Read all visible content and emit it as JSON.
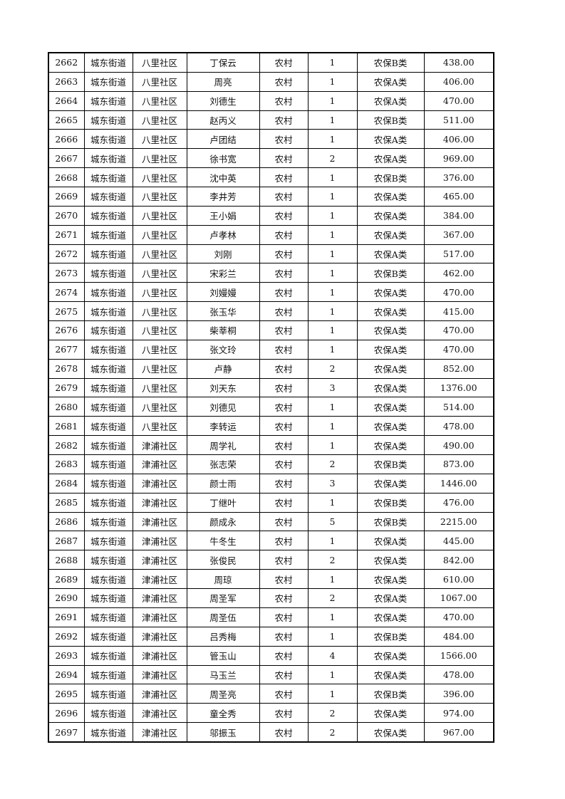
{
  "table": {
    "rows": [
      [
        "2662",
        "城东街道",
        "八里社区",
        "丁保云",
        "农村",
        "1",
        "农保B类",
        "438.00"
      ],
      [
        "2663",
        "城东街道",
        "八里社区",
        "周亮",
        "农村",
        "1",
        "农保A类",
        "406.00"
      ],
      [
        "2664",
        "城东街道",
        "八里社区",
        "刘德生",
        "农村",
        "1",
        "农保A类",
        "470.00"
      ],
      [
        "2665",
        "城东街道",
        "八里社区",
        "赵丙义",
        "农村",
        "1",
        "农保B类",
        "511.00"
      ],
      [
        "2666",
        "城东街道",
        "八里社区",
        "卢团结",
        "农村",
        "1",
        "农保A类",
        "406.00"
      ],
      [
        "2667",
        "城东街道",
        "八里社区",
        "徐书宽",
        "农村",
        "2",
        "农保A类",
        "969.00"
      ],
      [
        "2668",
        "城东街道",
        "八里社区",
        "沈中英",
        "农村",
        "1",
        "农保B类",
        "376.00"
      ],
      [
        "2669",
        "城东街道",
        "八里社区",
        "李井芳",
        "农村",
        "1",
        "农保A类",
        "465.00"
      ],
      [
        "2670",
        "城东街道",
        "八里社区",
        "王小娟",
        "农村",
        "1",
        "农保A类",
        "384.00"
      ],
      [
        "2671",
        "城东街道",
        "八里社区",
        "卢孝林",
        "农村",
        "1",
        "农保A类",
        "367.00"
      ],
      [
        "2672",
        "城东街道",
        "八里社区",
        "刘刚",
        "农村",
        "1",
        "农保A类",
        "517.00"
      ],
      [
        "2673",
        "城东街道",
        "八里社区",
        "宋彩兰",
        "农村",
        "1",
        "农保B类",
        "462.00"
      ],
      [
        "2674",
        "城东街道",
        "八里社区",
        "刘嫚嫚",
        "农村",
        "1",
        "农保A类",
        "470.00"
      ],
      [
        "2675",
        "城东街道",
        "八里社区",
        "张玉华",
        "农村",
        "1",
        "农保A类",
        "415.00"
      ],
      [
        "2676",
        "城东街道",
        "八里社区",
        "柴莘桐",
        "农村",
        "1",
        "农保A类",
        "470.00"
      ],
      [
        "2677",
        "城东街道",
        "八里社区",
        "张文玲",
        "农村",
        "1",
        "农保A类",
        "470.00"
      ],
      [
        "2678",
        "城东街道",
        "八里社区",
        "卢静",
        "农村",
        "2",
        "农保A类",
        "852.00"
      ],
      [
        "2679",
        "城东街道",
        "八里社区",
        "刘天东",
        "农村",
        "3",
        "农保A类",
        "1376.00"
      ],
      [
        "2680",
        "城东街道",
        "八里社区",
        "刘德见",
        "农村",
        "1",
        "农保A类",
        "514.00"
      ],
      [
        "2681",
        "城东街道",
        "八里社区",
        "李转运",
        "农村",
        "1",
        "农保A类",
        "478.00"
      ],
      [
        "2682",
        "城东街道",
        "津浦社区",
        "周学礼",
        "农村",
        "1",
        "农保A类",
        "490.00"
      ],
      [
        "2683",
        "城东街道",
        "津浦社区",
        "张志荣",
        "农村",
        "2",
        "农保B类",
        "873.00"
      ],
      [
        "2684",
        "城东街道",
        "津浦社区",
        "颜士雨",
        "农村",
        "3",
        "农保A类",
        "1446.00"
      ],
      [
        "2685",
        "城东街道",
        "津浦社区",
        "丁继叶",
        "农村",
        "1",
        "农保B类",
        "476.00"
      ],
      [
        "2686",
        "城东街道",
        "津浦社区",
        "颜成永",
        "农村",
        "5",
        "农保B类",
        "2215.00"
      ],
      [
        "2687",
        "城东街道",
        "津浦社区",
        "牛冬生",
        "农村",
        "1",
        "农保A类",
        "445.00"
      ],
      [
        "2688",
        "城东街道",
        "津浦社区",
        "张俊民",
        "农村",
        "2",
        "农保A类",
        "842.00"
      ],
      [
        "2689",
        "城东街道",
        "津浦社区",
        "周琼",
        "农村",
        "1",
        "农保A类",
        "610.00"
      ],
      [
        "2690",
        "城东街道",
        "津浦社区",
        "周圣军",
        "农村",
        "2",
        "农保A类",
        "1067.00"
      ],
      [
        "2691",
        "城东街道",
        "津浦社区",
        "周圣伍",
        "农村",
        "1",
        "农保A类",
        "470.00"
      ],
      [
        "2692",
        "城东街道",
        "津浦社区",
        "吕秀梅",
        "农村",
        "1",
        "农保B类",
        "484.00"
      ],
      [
        "2693",
        "城东街道",
        "津浦社区",
        "管玉山",
        "农村",
        "4",
        "农保A类",
        "1566.00"
      ],
      [
        "2694",
        "城东街道",
        "津浦社区",
        "马玉兰",
        "农村",
        "1",
        "农保A类",
        "478.00"
      ],
      [
        "2695",
        "城东街道",
        "津浦社区",
        "周圣亮",
        "农村",
        "1",
        "农保B类",
        "396.00"
      ],
      [
        "2696",
        "城东街道",
        "津浦社区",
        "童全秀",
        "农村",
        "2",
        "农保A类",
        "974.00"
      ],
      [
        "2697",
        "城东街道",
        "津浦社区",
        "邬振玉",
        "农村",
        "2",
        "农保A类",
        "967.00"
      ]
    ]
  }
}
